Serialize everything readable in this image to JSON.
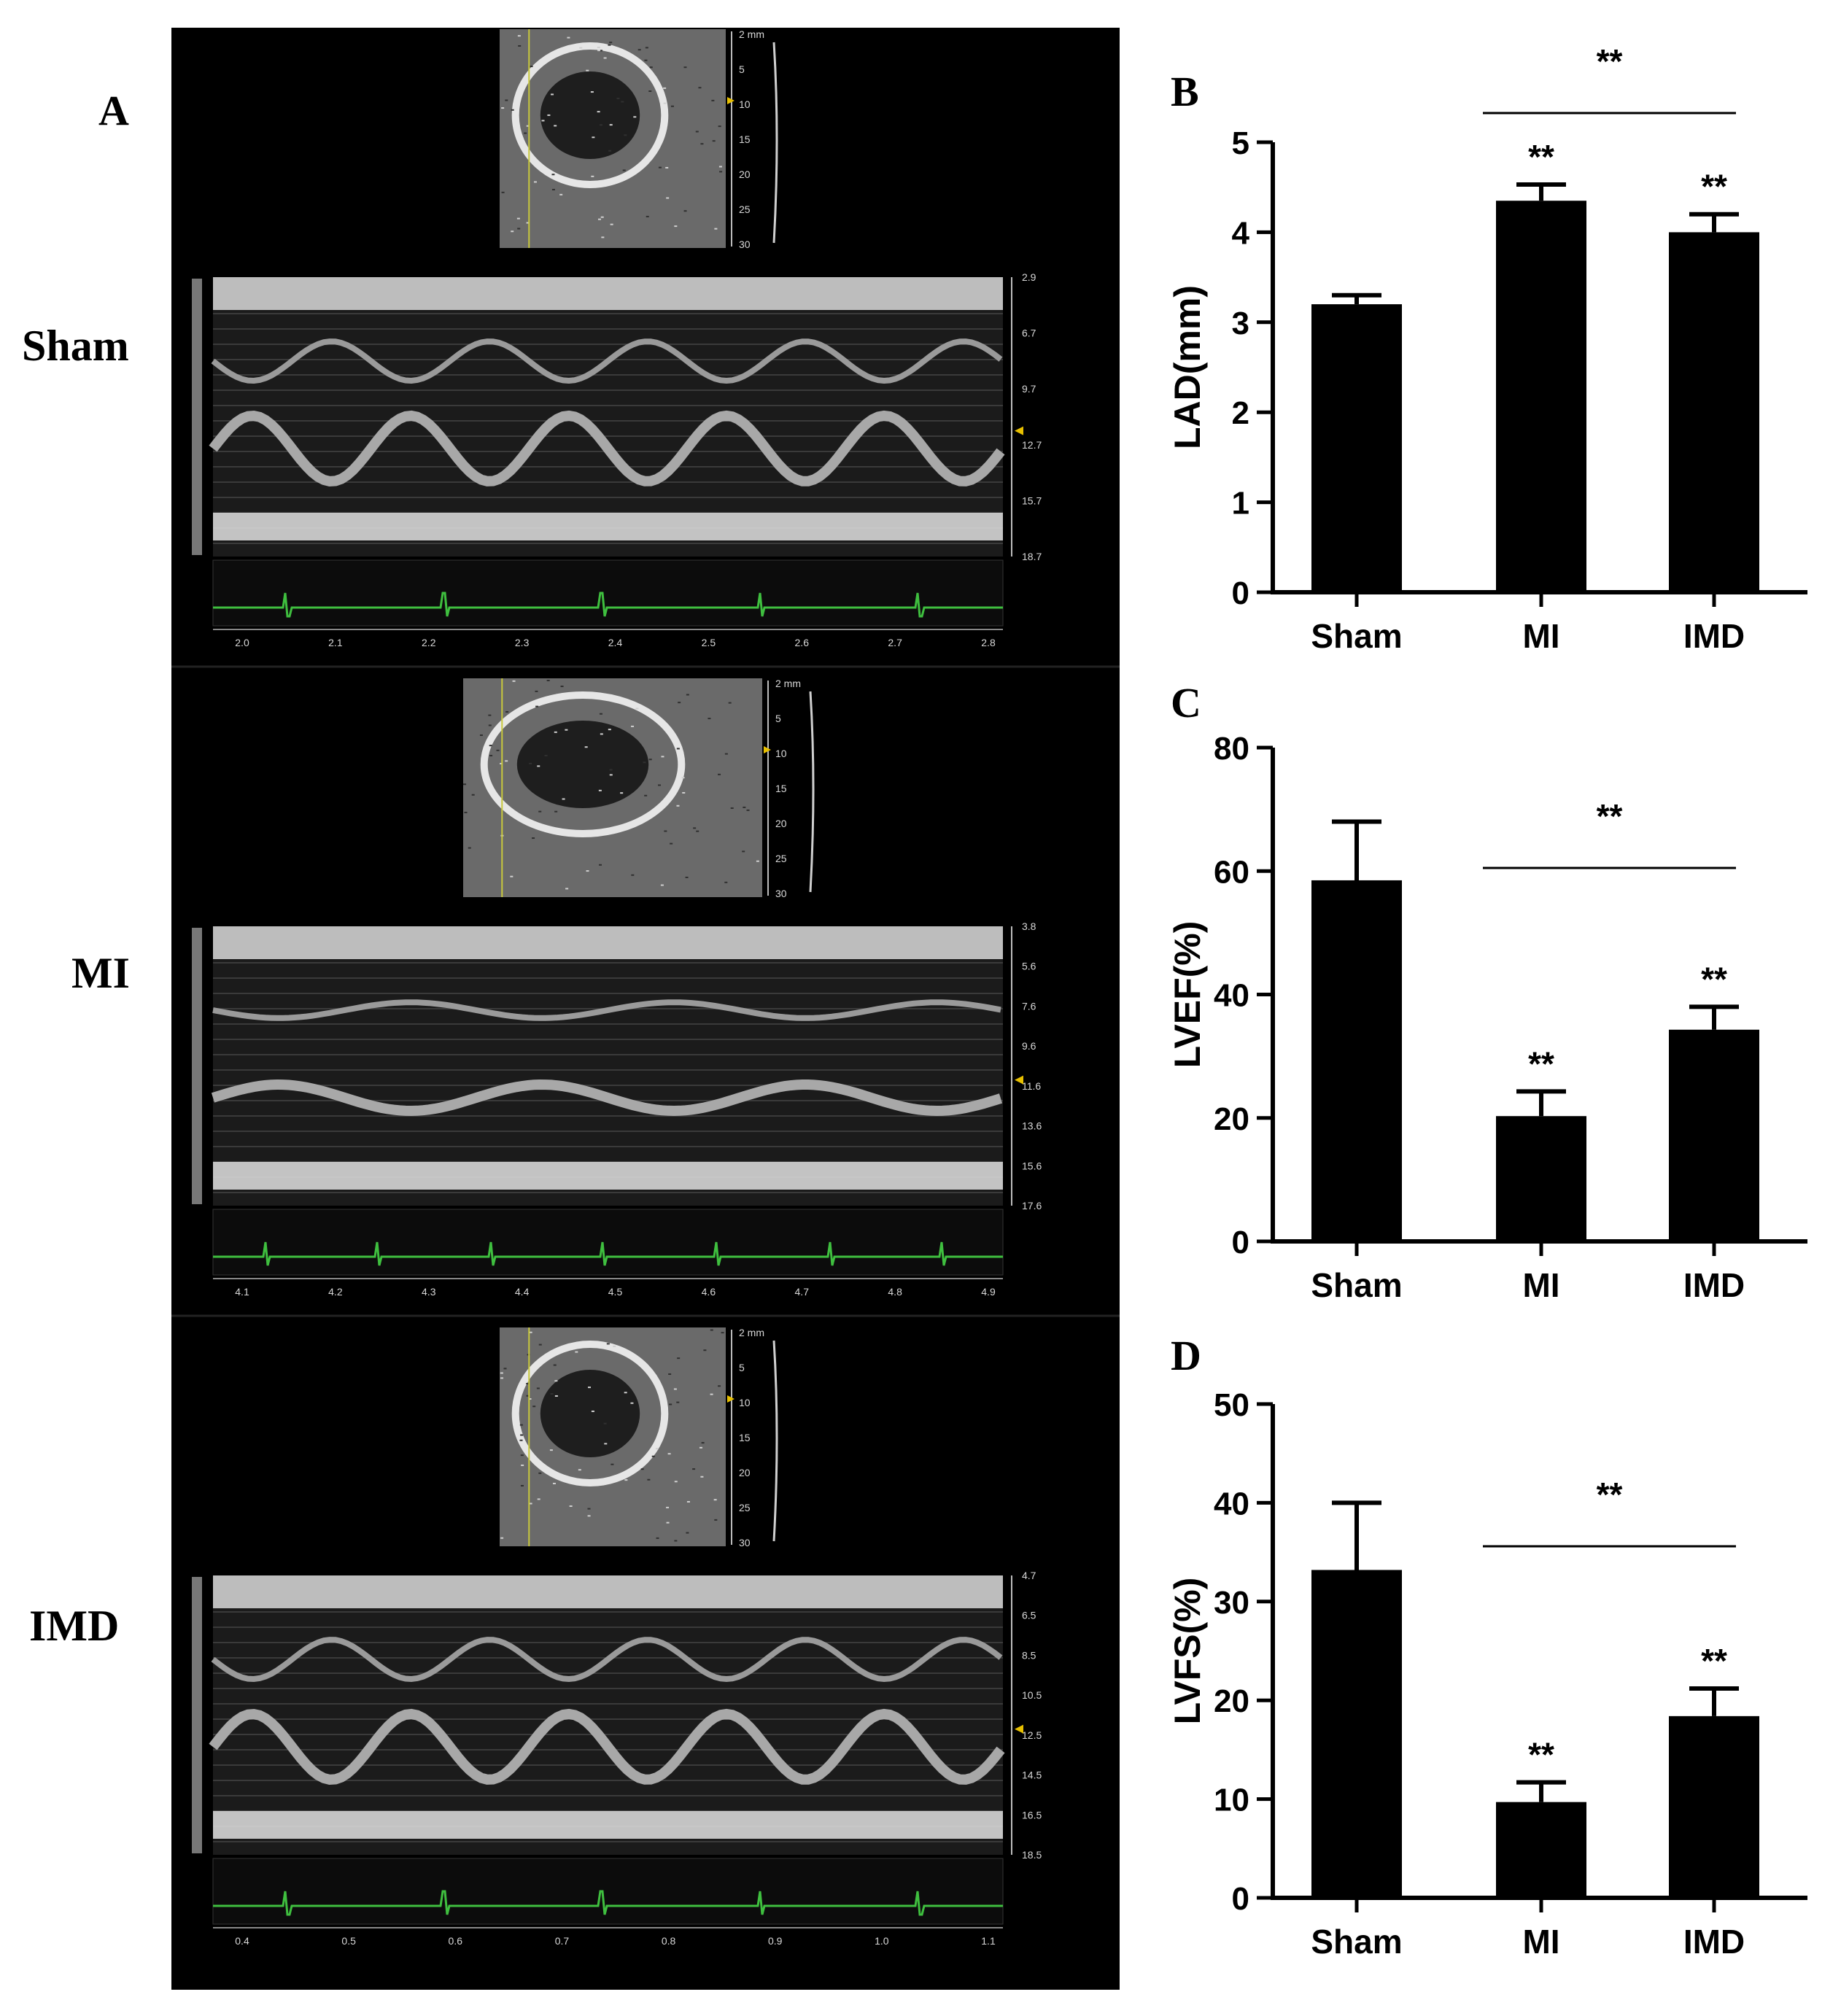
{
  "panel_a": {
    "letter": "A",
    "rows": [
      {
        "label": "Sham",
        "bmode_depth_ticks": [
          "2 mm",
          "5",
          "10",
          "15",
          "20",
          "25",
          "30"
        ],
        "mmode_depth_ticks": [
          "2.9",
          "6.7",
          "9.7",
          "12.7",
          "15.7",
          "18.7"
        ],
        "time_ticks": [
          "2.0",
          "2.1",
          "2.2",
          "2.3",
          "2.4",
          "2.5",
          "2.6",
          "2.7",
          "2.8"
        ]
      },
      {
        "label": "MI",
        "bmode_depth_ticks": [
          "2 mm",
          "5",
          "10",
          "15",
          "20",
          "25",
          "30"
        ],
        "mmode_depth_ticks": [
          "3.8",
          "5.6",
          "7.6",
          "9.6",
          "11.6",
          "13.6",
          "15.6",
          "17.6"
        ],
        "time_ticks": [
          "4.1",
          "4.2",
          "4.3",
          "4.4",
          "4.5",
          "4.6",
          "4.7",
          "4.8",
          "4.9"
        ]
      },
      {
        "label": "IMD",
        "bmode_depth_ticks": [
          "2 mm",
          "5",
          "10",
          "15",
          "20",
          "25",
          "30"
        ],
        "mmode_depth_ticks": [
          "4.7",
          "6.5",
          "8.5",
          "10.5",
          "12.5",
          "14.5",
          "16.5",
          "18.5"
        ],
        "time_ticks": [
          "0.4",
          "0.5",
          "0.6",
          "0.7",
          "0.8",
          "0.9",
          "1.0",
          "1.1"
        ]
      }
    ]
  },
  "colors": {
    "bar": "#000000",
    "ecg": "#3fbf3f",
    "cursor": "#c8c83c",
    "marker": "#e8c000"
  },
  "chart_data": [
    {
      "letter": "B",
      "type": "bar",
      "categories": [
        "Sham",
        "MI",
        "IMD"
      ],
      "values": [
        3.2,
        4.35,
        4.0
      ],
      "errors": [
        0.1,
        0.18,
        0.2
      ],
      "ylabel": "LAD(mm)",
      "ylim": [
        0,
        5
      ],
      "yticks": [
        "0",
        "1",
        "2",
        "3",
        "4",
        "5"
      ],
      "bar_marks": [
        "",
        "**",
        "**"
      ],
      "bracket": {
        "from": "MI",
        "to": "IMD",
        "label": "**"
      }
    },
    {
      "letter": "C",
      "type": "bar",
      "categories": [
        "Sham",
        "MI",
        "IMD"
      ],
      "values": [
        58.5,
        20.3,
        34.3
      ],
      "errors": [
        9.5,
        4.0,
        3.7
      ],
      "ylabel": "LVEF(%)",
      "ylim": [
        0,
        80
      ],
      "yticks": [
        "0",
        "20",
        "40",
        "60",
        "80"
      ],
      "bar_marks": [
        "",
        "**",
        "**"
      ],
      "bracket": {
        "from": "MI",
        "to": "IMD",
        "label": "**"
      }
    },
    {
      "letter": "D",
      "type": "bar",
      "categories": [
        "Sham",
        "MI",
        "IMD"
      ],
      "values": [
        33.2,
        9.7,
        18.4
      ],
      "errors": [
        6.8,
        2.0,
        2.8
      ],
      "ylabel": "LVFS(%)",
      "ylim": [
        0,
        50
      ],
      "yticks": [
        "0",
        "10",
        "20",
        "30",
        "40",
        "50"
      ],
      "bar_marks": [
        "",
        "**",
        "**"
      ],
      "bracket": {
        "from": "MI",
        "to": "IMD",
        "label": "**"
      }
    }
  ]
}
